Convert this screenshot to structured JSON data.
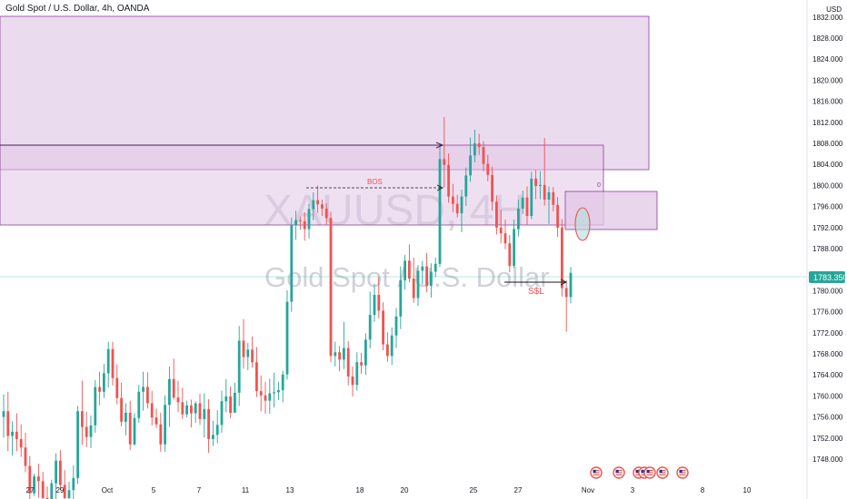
{
  "header": {
    "symbol_title": "Gold Spot / U.S. Dollar, 4h, OANDA",
    "currency": "USD"
  },
  "watermark": {
    "ticker": "XAUUSD, 4H",
    "name": "Gold Spot / U.S. Dollar"
  },
  "colors": {
    "up": "#26a69a",
    "down": "#ef5350",
    "zone_fill": "#e1c7e6",
    "zone_stroke": "#8e3e9e",
    "price_line": "#26a69a",
    "price_tag": "#26a69a"
  },
  "icons": [
    "us-flag-event-icon",
    "us-flag-event-icon",
    "us-flag-event-icon",
    "us-flag-event-icon",
    "us-flag-event-icon",
    "us-flag-event-icon",
    "us-flag-event-icon"
  ],
  "chart_data": {
    "type": "candlestick",
    "title": "Gold Spot / U.S. Dollar, 4h, OANDA",
    "ylim": [
      1745,
      1836
    ],
    "y_ticks": [
      "1832.000",
      "1828.000",
      "1824.000",
      "1820.000",
      "1816.000",
      "1812.000",
      "1808.000",
      "1804.000",
      "1800.000",
      "1796.000",
      "1792.000",
      "1788.000",
      "1780.000",
      "1776.000",
      "1772.000",
      "1768.000",
      "1764.000",
      "1760.000",
      "1756.000",
      "1752.000",
      "1748.000"
    ],
    "x_ticks": [
      "27",
      "29",
      "Oct",
      "5",
      "7",
      "11",
      "13",
      "18",
      "20",
      "25",
      "27",
      "Nov",
      "3",
      "8",
      "10"
    ],
    "last_price": "1783.350",
    "annotations": [
      {
        "text": "BOS",
        "color": "#ef5350"
      },
      {
        "text": "S$L",
        "color": "#ef5350"
      },
      {
        "text": "0",
        "color": "#8e3e9e"
      }
    ],
    "candles": [
      {
        "o": 1756.0,
        "h": 1760.3,
        "l": 1752.1,
        "c": 1757.1
      },
      {
        "o": 1757.1,
        "h": 1760.8,
        "l": 1749.5,
        "c": 1752.4
      },
      {
        "o": 1752.4,
        "h": 1755.2,
        "l": 1748.7,
        "c": 1753.2
      },
      {
        "o": 1753.2,
        "h": 1756.7,
        "l": 1749.5,
        "c": 1751.8
      },
      {
        "o": 1751.8,
        "h": 1754.6,
        "l": 1748.4,
        "c": 1750.2
      },
      {
        "o": 1750.2,
        "h": 1753.0,
        "l": 1745.5,
        "c": 1746.7
      },
      {
        "o": 1746.7,
        "h": 1748.6,
        "l": 1739.7,
        "c": 1741.5
      },
      {
        "o": 1741.5,
        "h": 1745.2,
        "l": 1741.0,
        "c": 1744.7
      },
      {
        "o": 1744.7,
        "h": 1747.1,
        "l": 1740.7,
        "c": 1743.8
      },
      {
        "o": 1743.8,
        "h": 1745.6,
        "l": 1738.9,
        "c": 1740.6
      },
      {
        "o": 1740.6,
        "h": 1742.8,
        "l": 1737.6,
        "c": 1739.8
      },
      {
        "o": 1739.8,
        "h": 1744.1,
        "l": 1737.2,
        "c": 1743.4
      },
      {
        "o": 1743.4,
        "h": 1749.1,
        "l": 1740.1,
        "c": 1747.7
      },
      {
        "o": 1747.7,
        "h": 1749.7,
        "l": 1742.1,
        "c": 1743.1
      },
      {
        "o": 1743.1,
        "h": 1745.9,
        "l": 1739.4,
        "c": 1740.6
      },
      {
        "o": 1740.6,
        "h": 1743.7,
        "l": 1737.7,
        "c": 1742.1
      },
      {
        "o": 1742.1,
        "h": 1746.8,
        "l": 1739.7,
        "c": 1744.4
      },
      {
        "o": 1744.4,
        "h": 1758.1,
        "l": 1743.3,
        "c": 1757.1
      },
      {
        "o": 1757.1,
        "h": 1762.9,
        "l": 1750.7,
        "c": 1754.1
      },
      {
        "o": 1754.1,
        "h": 1757.0,
        "l": 1750.3,
        "c": 1752.2
      },
      {
        "o": 1752.2,
        "h": 1756.3,
        "l": 1750.1,
        "c": 1754.4
      },
      {
        "o": 1754.4,
        "h": 1763.0,
        "l": 1753.0,
        "c": 1761.7
      },
      {
        "o": 1761.7,
        "h": 1764.6,
        "l": 1758.2,
        "c": 1760.8
      },
      {
        "o": 1760.8,
        "h": 1766.1,
        "l": 1759.6,
        "c": 1764.3
      },
      {
        "o": 1764.3,
        "h": 1770.3,
        "l": 1761.6,
        "c": 1768.9
      },
      {
        "o": 1768.9,
        "h": 1770.3,
        "l": 1762.0,
        "c": 1763.4
      },
      {
        "o": 1763.4,
        "h": 1766.0,
        "l": 1758.4,
        "c": 1759.6
      },
      {
        "o": 1759.6,
        "h": 1762.5,
        "l": 1754.2,
        "c": 1755.1
      },
      {
        "o": 1755.1,
        "h": 1758.6,
        "l": 1752.5,
        "c": 1756.8
      },
      {
        "o": 1756.8,
        "h": 1759.1,
        "l": 1749.7,
        "c": 1750.8
      },
      {
        "o": 1750.8,
        "h": 1756.7,
        "l": 1750.5,
        "c": 1755.8
      },
      {
        "o": 1755.8,
        "h": 1762.1,
        "l": 1754.9,
        "c": 1760.8
      },
      {
        "o": 1760.8,
        "h": 1764.6,
        "l": 1757.2,
        "c": 1761.7
      },
      {
        "o": 1761.7,
        "h": 1764.5,
        "l": 1757.6,
        "c": 1758.6
      },
      {
        "o": 1758.6,
        "h": 1761.0,
        "l": 1754.4,
        "c": 1755.9
      },
      {
        "o": 1755.9,
        "h": 1757.6,
        "l": 1753.9,
        "c": 1754.6
      },
      {
        "o": 1754.6,
        "h": 1756.8,
        "l": 1749.4,
        "c": 1750.8
      },
      {
        "o": 1750.8,
        "h": 1760.1,
        "l": 1749.4,
        "c": 1758.3
      },
      {
        "o": 1758.3,
        "h": 1765.6,
        "l": 1754.1,
        "c": 1763.2
      },
      {
        "o": 1763.2,
        "h": 1767.1,
        "l": 1759.3,
        "c": 1759.7
      },
      {
        "o": 1759.7,
        "h": 1762.9,
        "l": 1756.9,
        "c": 1758.8
      },
      {
        "o": 1758.8,
        "h": 1761.5,
        "l": 1755.6,
        "c": 1756.5
      },
      {
        "o": 1756.5,
        "h": 1759.1,
        "l": 1755.9,
        "c": 1758.2
      },
      {
        "o": 1758.2,
        "h": 1759.3,
        "l": 1754.0,
        "c": 1756.7
      },
      {
        "o": 1756.7,
        "h": 1759.0,
        "l": 1754.9,
        "c": 1758.6
      },
      {
        "o": 1758.6,
        "h": 1760.4,
        "l": 1754.5,
        "c": 1755.6
      },
      {
        "o": 1755.6,
        "h": 1760.5,
        "l": 1752.1,
        "c": 1757.5
      },
      {
        "o": 1757.5,
        "h": 1759.4,
        "l": 1749.2,
        "c": 1751.8
      },
      {
        "o": 1751.8,
        "h": 1755.3,
        "l": 1750.5,
        "c": 1752.6
      },
      {
        "o": 1752.6,
        "h": 1757.3,
        "l": 1751.0,
        "c": 1754.5
      },
      {
        "o": 1754.5,
        "h": 1761.0,
        "l": 1753.0,
        "c": 1759.0
      },
      {
        "o": 1759.0,
        "h": 1763.2,
        "l": 1756.9,
        "c": 1759.9
      },
      {
        "o": 1759.9,
        "h": 1761.8,
        "l": 1755.8,
        "c": 1756.8
      },
      {
        "o": 1756.8,
        "h": 1762.5,
        "l": 1756.8,
        "c": 1760.6
      },
      {
        "o": 1760.6,
        "h": 1773.3,
        "l": 1758.1,
        "c": 1770.5
      },
      {
        "o": 1770.5,
        "h": 1774.6,
        "l": 1765.2,
        "c": 1767.4
      },
      {
        "o": 1767.4,
        "h": 1770.1,
        "l": 1764.9,
        "c": 1768.8
      },
      {
        "o": 1768.8,
        "h": 1771.3,
        "l": 1765.4,
        "c": 1766.4
      },
      {
        "o": 1766.4,
        "h": 1769.3,
        "l": 1759.8,
        "c": 1760.9
      },
      {
        "o": 1760.9,
        "h": 1763.9,
        "l": 1757.1,
        "c": 1760.1
      },
      {
        "o": 1760.1,
        "h": 1762.7,
        "l": 1756.6,
        "c": 1759.1
      },
      {
        "o": 1759.1,
        "h": 1763.3,
        "l": 1756.6,
        "c": 1760.5
      },
      {
        "o": 1760.5,
        "h": 1764.4,
        "l": 1757.8,
        "c": 1760.7
      },
      {
        "o": 1760.7,
        "h": 1762.7,
        "l": 1759.2,
        "c": 1761.1
      },
      {
        "o": 1761.1,
        "h": 1764.8,
        "l": 1758.8,
        "c": 1764.1
      },
      {
        "o": 1764.1,
        "h": 1780.1,
        "l": 1763.1,
        "c": 1777.9
      },
      {
        "o": 1777.9,
        "h": 1793.9,
        "l": 1776.0,
        "c": 1792.5
      },
      {
        "o": 1792.5,
        "h": 1795.2,
        "l": 1789.7,
        "c": 1793.4
      },
      {
        "o": 1793.4,
        "h": 1794.1,
        "l": 1791.6,
        "c": 1793.2
      },
      {
        "o": 1793.2,
        "h": 1794.9,
        "l": 1789.5,
        "c": 1791.7
      },
      {
        "o": 1791.7,
        "h": 1796.5,
        "l": 1789.9,
        "c": 1795.5
      },
      {
        "o": 1795.5,
        "h": 1798.7,
        "l": 1793.4,
        "c": 1797.2
      },
      {
        "o": 1797.2,
        "h": 1800.0,
        "l": 1794.8,
        "c": 1796.4
      },
      {
        "o": 1796.4,
        "h": 1797.3,
        "l": 1794.2,
        "c": 1795.6
      },
      {
        "o": 1795.6,
        "h": 1796.6,
        "l": 1792.4,
        "c": 1793.8
      },
      {
        "o": 1793.8,
        "h": 1795.0,
        "l": 1766.4,
        "c": 1767.6
      },
      {
        "o": 1767.6,
        "h": 1770.3,
        "l": 1765.6,
        "c": 1768.3
      },
      {
        "o": 1768.3,
        "h": 1769.5,
        "l": 1764.7,
        "c": 1766.9
      },
      {
        "o": 1766.9,
        "h": 1774.1,
        "l": 1765.1,
        "c": 1769.1
      },
      {
        "o": 1769.1,
        "h": 1770.4,
        "l": 1762.0,
        "c": 1763.7
      },
      {
        "o": 1763.7,
        "h": 1765.6,
        "l": 1759.9,
        "c": 1762.1
      },
      {
        "o": 1762.1,
        "h": 1768.3,
        "l": 1761.0,
        "c": 1766.4
      },
      {
        "o": 1766.4,
        "h": 1768.2,
        "l": 1764.2,
        "c": 1765.8
      },
      {
        "o": 1765.8,
        "h": 1771.9,
        "l": 1764.0,
        "c": 1770.7
      },
      {
        "o": 1770.7,
        "h": 1779.8,
        "l": 1769.0,
        "c": 1775.4
      },
      {
        "o": 1775.4,
        "h": 1781.3,
        "l": 1774.1,
        "c": 1779.2
      },
      {
        "o": 1779.2,
        "h": 1782.6,
        "l": 1774.7,
        "c": 1776.2
      },
      {
        "o": 1776.2,
        "h": 1777.8,
        "l": 1768.7,
        "c": 1769.8
      },
      {
        "o": 1769.8,
        "h": 1772.1,
        "l": 1766.5,
        "c": 1767.6
      },
      {
        "o": 1767.6,
        "h": 1773.0,
        "l": 1765.9,
        "c": 1771.5
      },
      {
        "o": 1771.5,
        "h": 1776.7,
        "l": 1769.1,
        "c": 1775.1
      },
      {
        "o": 1775.1,
        "h": 1784.6,
        "l": 1772.7,
        "c": 1782.0
      },
      {
        "o": 1782.0,
        "h": 1786.8,
        "l": 1780.2,
        "c": 1785.7
      },
      {
        "o": 1785.7,
        "h": 1788.8,
        "l": 1781.6,
        "c": 1782.3
      },
      {
        "o": 1782.3,
        "h": 1786.3,
        "l": 1777.7,
        "c": 1778.6
      },
      {
        "o": 1778.6,
        "h": 1784.9,
        "l": 1777.1,
        "c": 1783.8
      },
      {
        "o": 1783.8,
        "h": 1785.7,
        "l": 1781.2,
        "c": 1784.6
      },
      {
        "o": 1784.6,
        "h": 1787.2,
        "l": 1779.7,
        "c": 1780.9
      },
      {
        "o": 1780.9,
        "h": 1785.2,
        "l": 1778.7,
        "c": 1783.6
      },
      {
        "o": 1783.6,
        "h": 1786.3,
        "l": 1782.6,
        "c": 1785.1
      },
      {
        "o": 1785.1,
        "h": 1807.8,
        "l": 1784.5,
        "c": 1805.0
      },
      {
        "o": 1805.0,
        "h": 1813.0,
        "l": 1799.6,
        "c": 1803.9
      },
      {
        "o": 1803.9,
        "h": 1806.1,
        "l": 1796.7,
        "c": 1797.9
      },
      {
        "o": 1797.9,
        "h": 1800.3,
        "l": 1794.9,
        "c": 1796.5
      },
      {
        "o": 1796.5,
        "h": 1798.2,
        "l": 1793.9,
        "c": 1794.7
      },
      {
        "o": 1794.7,
        "h": 1799.2,
        "l": 1791.1,
        "c": 1797.9
      },
      {
        "o": 1797.9,
        "h": 1803.4,
        "l": 1796.1,
        "c": 1801.9
      },
      {
        "o": 1801.9,
        "h": 1809.1,
        "l": 1800.7,
        "c": 1805.7
      },
      {
        "o": 1805.7,
        "h": 1810.6,
        "l": 1804.4,
        "c": 1808.0
      },
      {
        "o": 1808.0,
        "h": 1809.8,
        "l": 1805.8,
        "c": 1807.3
      },
      {
        "o": 1807.3,
        "h": 1808.4,
        "l": 1802.7,
        "c": 1804.1
      },
      {
        "o": 1804.1,
        "h": 1805.8,
        "l": 1800.8,
        "c": 1802.0
      },
      {
        "o": 1802.0,
        "h": 1803.6,
        "l": 1795.2,
        "c": 1796.9
      },
      {
        "o": 1796.9,
        "h": 1798.1,
        "l": 1790.7,
        "c": 1792.0
      },
      {
        "o": 1792.0,
        "h": 1795.4,
        "l": 1789.0,
        "c": 1790.9
      },
      {
        "o": 1790.9,
        "h": 1793.5,
        "l": 1787.9,
        "c": 1789.0
      },
      {
        "o": 1789.0,
        "h": 1790.6,
        "l": 1783.5,
        "c": 1784.7
      },
      {
        "o": 1784.7,
        "h": 1793.5,
        "l": 1784.3,
        "c": 1791.7
      },
      {
        "o": 1791.7,
        "h": 1797.3,
        "l": 1790.3,
        "c": 1795.6
      },
      {
        "o": 1795.6,
        "h": 1799.0,
        "l": 1794.6,
        "c": 1797.7
      },
      {
        "o": 1797.7,
        "h": 1799.8,
        "l": 1792.4,
        "c": 1794.2
      },
      {
        "o": 1794.2,
        "h": 1802.6,
        "l": 1793.6,
        "c": 1801.3
      },
      {
        "o": 1801.3,
        "h": 1802.9,
        "l": 1797.4,
        "c": 1799.9
      },
      {
        "o": 1799.9,
        "h": 1802.7,
        "l": 1797.4,
        "c": 1800.1
      },
      {
        "o": 1800.1,
        "h": 1809.0,
        "l": 1796.2,
        "c": 1797.3
      },
      {
        "o": 1797.3,
        "h": 1799.8,
        "l": 1792.7,
        "c": 1798.7
      },
      {
        "o": 1798.7,
        "h": 1799.7,
        "l": 1795.1,
        "c": 1796.3
      },
      {
        "o": 1796.3,
        "h": 1797.8,
        "l": 1790.2,
        "c": 1792.0
      },
      {
        "o": 1792.0,
        "h": 1793.6,
        "l": 1778.9,
        "c": 1780.5
      },
      {
        "o": 1780.5,
        "h": 1782.0,
        "l": 1772.2,
        "c": 1778.8
      },
      {
        "o": 1778.8,
        "h": 1784.5,
        "l": 1777.6,
        "c": 1783.4
      }
    ]
  }
}
